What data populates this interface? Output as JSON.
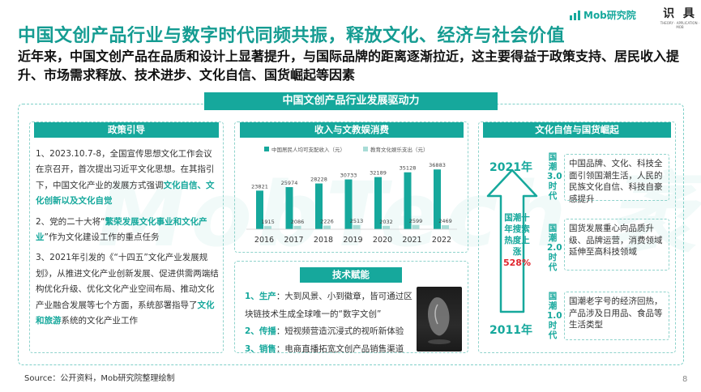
{
  "title": "中国文创产品行业与数字时代同频共振，释放文化、经济与社会价值",
  "subtitle": "近年来，中国文创产品在品质和设计上显著提升，与国际品牌的距离逐渐拉近，这主要得益于政策支持、居民收入提升、市场需求释放、技术进步、文化自信、国货崛起等因素",
  "logo": {
    "mob": "Mob研究院",
    "shiju": "识 具",
    "shiju_sub": "THEORY · APPLICATION · MOB"
  },
  "watermark": "MobTech 袤博",
  "main_header": "中国文创产品行业发展驱动力",
  "policy": {
    "header": "政策引导",
    "p1_a": "1、2023.10.7-8，全国宣传思想文化工作会议在京召开，首次提出习近平文化思想。在其指引下，中国文化产业的发展方式强调",
    "p1_hl": "文化自信、文化创新以及文化自觉",
    "p2_a": "2、党的二十大将“",
    "p2_hl": "繁荣发展文化事业和文化产业",
    "p2_b": "”作为文化建设工作的重点任务",
    "p3_a": "3、2021年引发的《“十四五”文化产业发展规划》，从推进文化产业创新发展、促进供需两端结构优化升级、优化文化产业空间布局、推动文化产业融合发展等七个方面，系统部署指导了",
    "p3_hl": "文化和旅游",
    "p3_b": "系统的文化产业工作"
  },
  "income": {
    "header": "收入与文教娱消费"
  },
  "chart_data": {
    "type": "bar",
    "categories": [
      "2016",
      "2017",
      "2018",
      "2019",
      "2020",
      "2021",
      "2022"
    ],
    "series": [
      {
        "name": "中国居民人均可支配收入（元）",
        "values": [
          23821,
          25974,
          28228,
          30733,
          32189,
          35128,
          36883
        ],
        "color": "#16a89c"
      },
      {
        "name": "教育文化娱乐支出（元）",
        "values": [
          1915,
          2086,
          2226,
          2513,
          2032,
          2599,
          2469
        ],
        "color": "#a8dcd6"
      }
    ],
    "ylim": [
      0,
      40000
    ]
  },
  "tech": {
    "header": "技术赋能",
    "items": [
      {
        "num": "1、",
        "key": "生产",
        "text": "：大到风景、小到徽章，皆可通过区块链技术生成全球唯一的“数字文创”"
      },
      {
        "num": "2、",
        "key": "传播",
        "text": "：短视频营造沉浸式的视听新体验"
      },
      {
        "num": "3、",
        "key": "销售",
        "text": "：电商直播拓宽文创产品销售渠道"
      }
    ]
  },
  "culture": {
    "header": "文化自信与国货崛起",
    "year_top": "2021年",
    "year_bottom": "2011年",
    "arrow_label": "国潮十年搜索热度上涨",
    "arrow_pct": "528%",
    "eras": [
      {
        "label": "国潮3.0时代",
        "text": "中国品牌、文化、科技全面引领国潮生活，人民的民族文化自信、科技自豪感提升"
      },
      {
        "label": "国潮2.0时代",
        "text": "国货发展重心向品质升级、品牌运营，消费领域延伸至高科技领域"
      },
      {
        "label": "国潮1.0时代",
        "text": "国潮老字号的经济回热，产品涉及日用品、食品等生活类型"
      }
    ]
  },
  "source": "Source：公开资料，Mob研究院整理绘制",
  "page_number": "8",
  "colors": {
    "accent": "#16a89c",
    "light": "#a8dcd6",
    "red": "#e0262e"
  }
}
